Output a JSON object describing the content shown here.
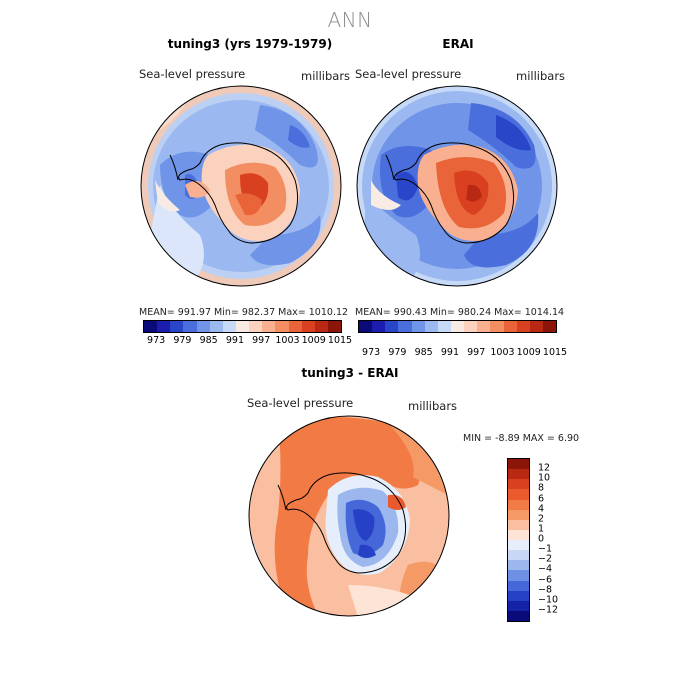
{
  "title": "ANN",
  "panels": [
    {
      "title": "tuning3 (yrs 1979-1979)",
      "var": "Sea-level pressure",
      "units": "millibars",
      "stats": "MEAN= 991.97   Min= 982.37   Max= 1010.12"
    },
    {
      "title": "ERAI",
      "var": "Sea-level pressure",
      "units": "millibars",
      "stats": "MEAN= 990.43   Min= 980.24   Max= 1014.14"
    },
    {
      "title": "tuning3 - ERAI",
      "var": "Sea-level pressure",
      "units": "millibars",
      "stats": "MIN =  -8.89 MAX =   6.90"
    }
  ],
  "colorbar_top": {
    "ticks": [
      "973",
      "979",
      "985",
      "991",
      "997",
      "1003",
      "1009",
      "1015"
    ],
    "colors": [
      "#0a0a78",
      "#1c1caf",
      "#2a46c8",
      "#4a6edb",
      "#6f94e8",
      "#9bb8f0",
      "#c6d9f6",
      "#f7ebe4",
      "#fbd2be",
      "#f9b090",
      "#f38d62",
      "#ea6439",
      "#d84020",
      "#b92812",
      "#8b1508"
    ]
  },
  "colorbar_diff": {
    "ticks": [
      "12",
      "10",
      "8",
      "6",
      "4",
      "2",
      "1",
      "0",
      "−1",
      "−2",
      "−4",
      "−6",
      "−8",
      "−10",
      "−12"
    ],
    "colors": [
      "#8b1508",
      "#b92812",
      "#d84020",
      "#ea5a2c",
      "#f27a45",
      "#f59a66",
      "#f9bfa0",
      "#fde4d6",
      "#e6eefb",
      "#c7d7f5",
      "#9cb7ee",
      "#6e90e4",
      "#4567d8",
      "#2640c6",
      "#1422a8",
      "#0a0a78"
    ]
  }
}
